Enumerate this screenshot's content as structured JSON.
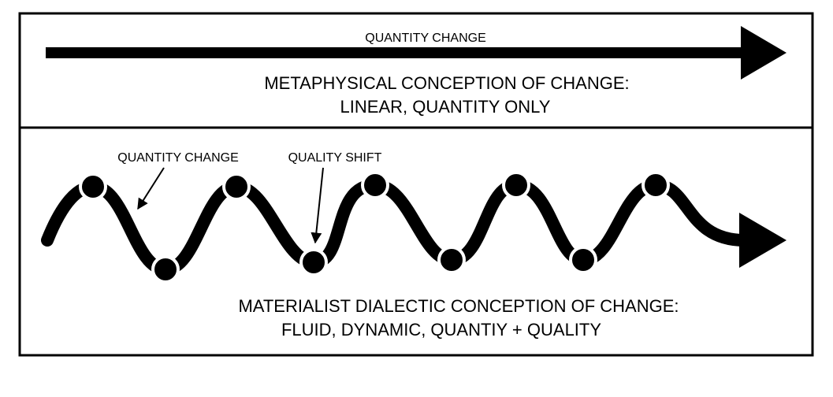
{
  "top_panel": {
    "arrow_label": "QUANTITY CHANGE",
    "caption": [
      "METAPHYSICAL CONCEPTION OF CHANGE:",
      "LINEAR, QUANTITY ONLY"
    ]
  },
  "bottom_panel": {
    "labels": [
      "QUANTITY CHANGE",
      "QUALITY SHIFT"
    ],
    "caption": [
      "MATERIALIST DIALECTIC CONCEPTION OF CHANGE:",
      "FLUID, DYNAMIC, QUANTIY + QUALITY"
    ]
  }
}
